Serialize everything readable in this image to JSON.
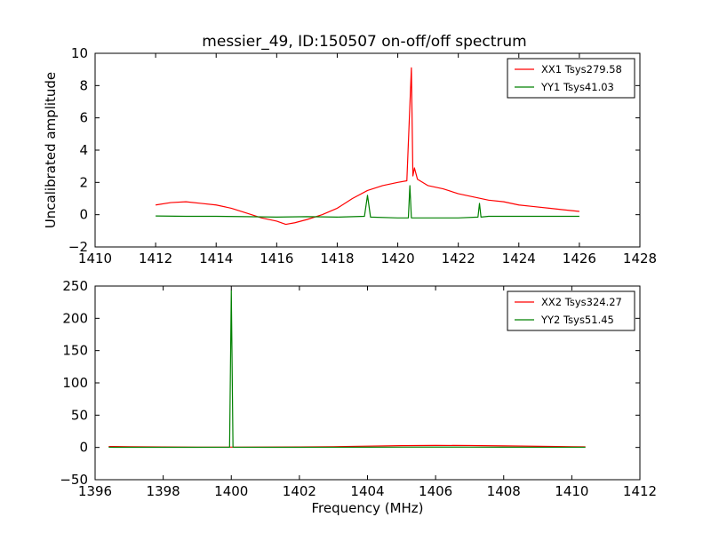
{
  "title": "messier_49, ID:150507 on-off/off spectrum",
  "chart_data": [
    {
      "type": "line",
      "title": "messier_49, ID:150507 on-off/off spectrum",
      "xlabel": "",
      "ylabel": "Uncalibrated amplitude",
      "xlim": [
        1410,
        1428
      ],
      "ylim": [
        -2,
        10
      ],
      "xticks": [
        1410,
        1412,
        1414,
        1416,
        1418,
        1420,
        1422,
        1424,
        1426,
        1428
      ],
      "yticks": [
        -2,
        0,
        2,
        4,
        6,
        8,
        10
      ],
      "xtick_labels": [
        "1410",
        "1412",
        "1414",
        "1416",
        "1418",
        "1420",
        "1422",
        "1424",
        "1426",
        "1428"
      ],
      "ytick_labels": [
        "−2",
        "0",
        "2",
        "4",
        "6",
        "8",
        "10"
      ],
      "legend": "top-right",
      "series": [
        {
          "name": "XX1 Tsys279.58",
          "color": "#ff0000",
          "x": [
            1412.0,
            1412.5,
            1413.0,
            1413.5,
            1414.0,
            1414.5,
            1415.0,
            1415.5,
            1416.0,
            1416.3,
            1416.6,
            1417.0,
            1417.5,
            1418.0,
            1418.5,
            1419.0,
            1419.5,
            1420.0,
            1420.3,
            1420.45,
            1420.5,
            1420.55,
            1420.65,
            1421.0,
            1421.5,
            1422.0,
            1422.5,
            1423.0,
            1423.5,
            1424.0,
            1424.5,
            1425.0,
            1425.5,
            1426.0
          ],
          "y": [
            0.6,
            0.75,
            0.8,
            0.7,
            0.6,
            0.4,
            0.1,
            -0.2,
            -0.4,
            -0.6,
            -0.5,
            -0.3,
            0.0,
            0.4,
            1.0,
            1.5,
            1.8,
            2.0,
            2.1,
            9.1,
            2.4,
            2.9,
            2.2,
            1.8,
            1.6,
            1.3,
            1.1,
            0.9,
            0.8,
            0.6,
            0.5,
            0.4,
            0.3,
            0.2
          ]
        },
        {
          "name": "YY1 Tsys41.03",
          "color": "#008000",
          "x": [
            1412.0,
            1413.0,
            1414.0,
            1415.0,
            1416.0,
            1417.0,
            1418.0,
            1418.9,
            1419.0,
            1419.1,
            1420.0,
            1420.35,
            1420.4,
            1420.45,
            1421.0,
            1422.0,
            1422.65,
            1422.7,
            1422.75,
            1423.0,
            1424.0,
            1425.0,
            1426.0
          ],
          "y": [
            -0.08,
            -0.1,
            -0.1,
            -0.12,
            -0.15,
            -0.12,
            -0.15,
            -0.1,
            1.2,
            -0.15,
            -0.2,
            -0.2,
            1.8,
            -0.2,
            -0.2,
            -0.2,
            -0.15,
            0.7,
            -0.15,
            -0.1,
            -0.1,
            -0.1,
            -0.1
          ]
        }
      ]
    },
    {
      "type": "line",
      "title": "",
      "xlabel": "Frequency (MHz)",
      "ylabel": "",
      "xlim": [
        1396,
        1412
      ],
      "ylim": [
        -50,
        250
      ],
      "xticks": [
        1396,
        1398,
        1400,
        1402,
        1404,
        1406,
        1408,
        1410,
        1412
      ],
      "yticks": [
        -50,
        0,
        50,
        100,
        150,
        200,
        250
      ],
      "xtick_labels": [
        "1396",
        "1398",
        "1400",
        "1402",
        "1404",
        "1406",
        "1408",
        "1410",
        "1412"
      ],
      "ytick_labels": [
        "−50",
        "0",
        "50",
        "100",
        "150",
        "200",
        "250"
      ],
      "legend": "top-right",
      "series": [
        {
          "name": "XX2 Tsys324.27",
          "color": "#ff0000",
          "x": [
            1396.4,
            1397.0,
            1398.0,
            1399.0,
            1400.0,
            1401.0,
            1402.0,
            1403.0,
            1404.0,
            1405.0,
            1406.0,
            1407.0,
            1408.0,
            1409.0,
            1410.0,
            1410.4
          ],
          "y": [
            1.5,
            1.2,
            0.8,
            0.5,
            0.5,
            0.6,
            0.8,
            1.2,
            2.0,
            2.8,
            3.2,
            3.0,
            2.5,
            1.8,
            1.2,
            1.0
          ]
        },
        {
          "name": "YY2 Tsys51.45",
          "color": "#008000",
          "x": [
            1396.4,
            1397.0,
            1398.0,
            1399.0,
            1399.95,
            1400.0,
            1400.05,
            1401.0,
            1402.0,
            1403.0,
            1404.0,
            1405.0,
            1406.0,
            1407.0,
            1408.0,
            1409.0,
            1410.0,
            1410.4
          ],
          "y": [
            0.3,
            0.2,
            0.2,
            0.2,
            0.3,
            243.0,
            0.3,
            0.2,
            0.2,
            0.3,
            0.4,
            0.5,
            0.6,
            0.5,
            0.4,
            0.3,
            0.3,
            0.3
          ]
        }
      ]
    }
  ]
}
